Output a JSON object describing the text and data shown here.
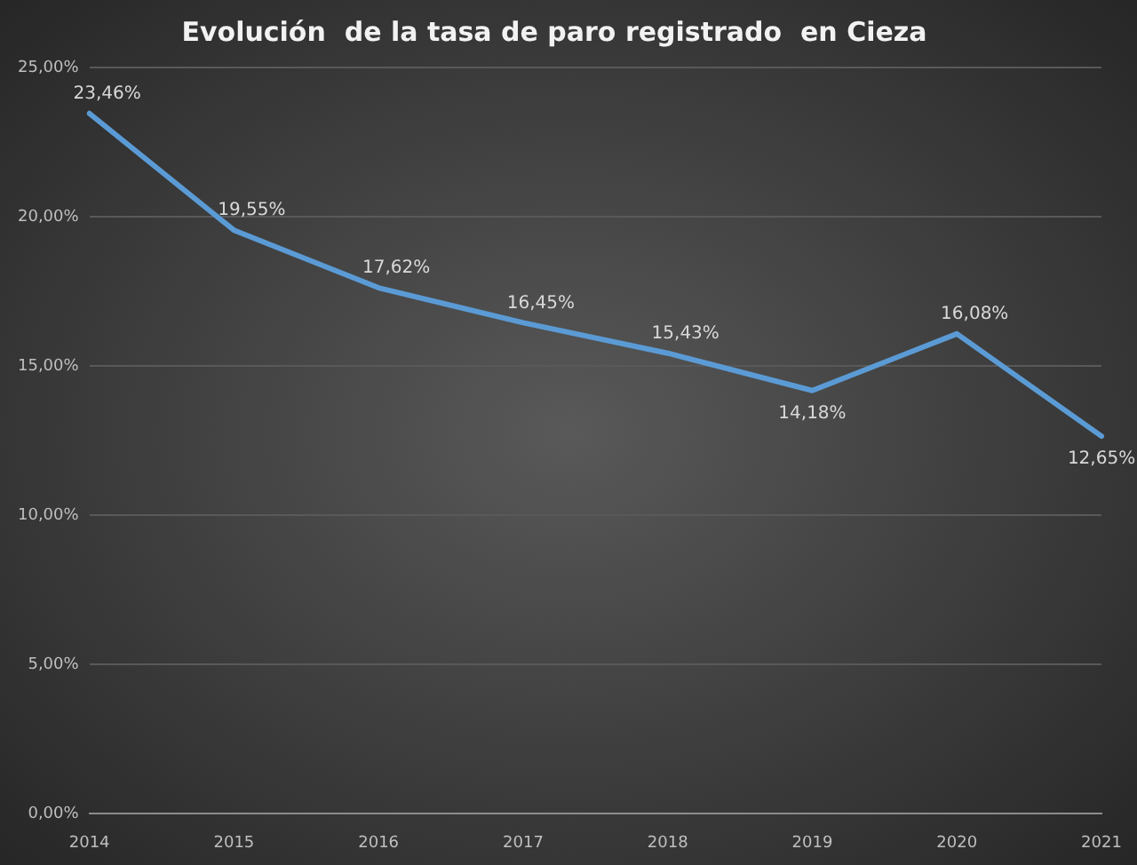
{
  "chart_data": {
    "type": "line",
    "title": "Evolución  de la tasa de paro registrado  en Cieza",
    "categories": [
      "2014",
      "2015",
      "2016",
      "2017",
      "2018",
      "2019",
      "2020",
      "2021"
    ],
    "series": [
      {
        "color": "#5b9bd5",
        "values": [
          23.46,
          19.55,
          17.62,
          16.45,
          15.43,
          14.18,
          16.08,
          12.65
        ],
        "value_labels": [
          "23,46%",
          "19,55%",
          "17,62%",
          "16,45%",
          "15,43%",
          "14,18%",
          "16,08%",
          "12,65%"
        ]
      }
    ],
    "ylim": [
      0,
      25
    ],
    "yticks": [
      {
        "value": 0,
        "label": "0,00%"
      },
      {
        "value": 5,
        "label": "5,00%"
      },
      {
        "value": 10,
        "label": "10,00%"
      },
      {
        "value": 15,
        "label": "15,00%"
      },
      {
        "value": 20,
        "label": "20,00%"
      },
      {
        "value": 25,
        "label": "25,00%"
      }
    ],
    "grid": "y",
    "legend": false,
    "marker": "none",
    "line_style": "solid"
  }
}
